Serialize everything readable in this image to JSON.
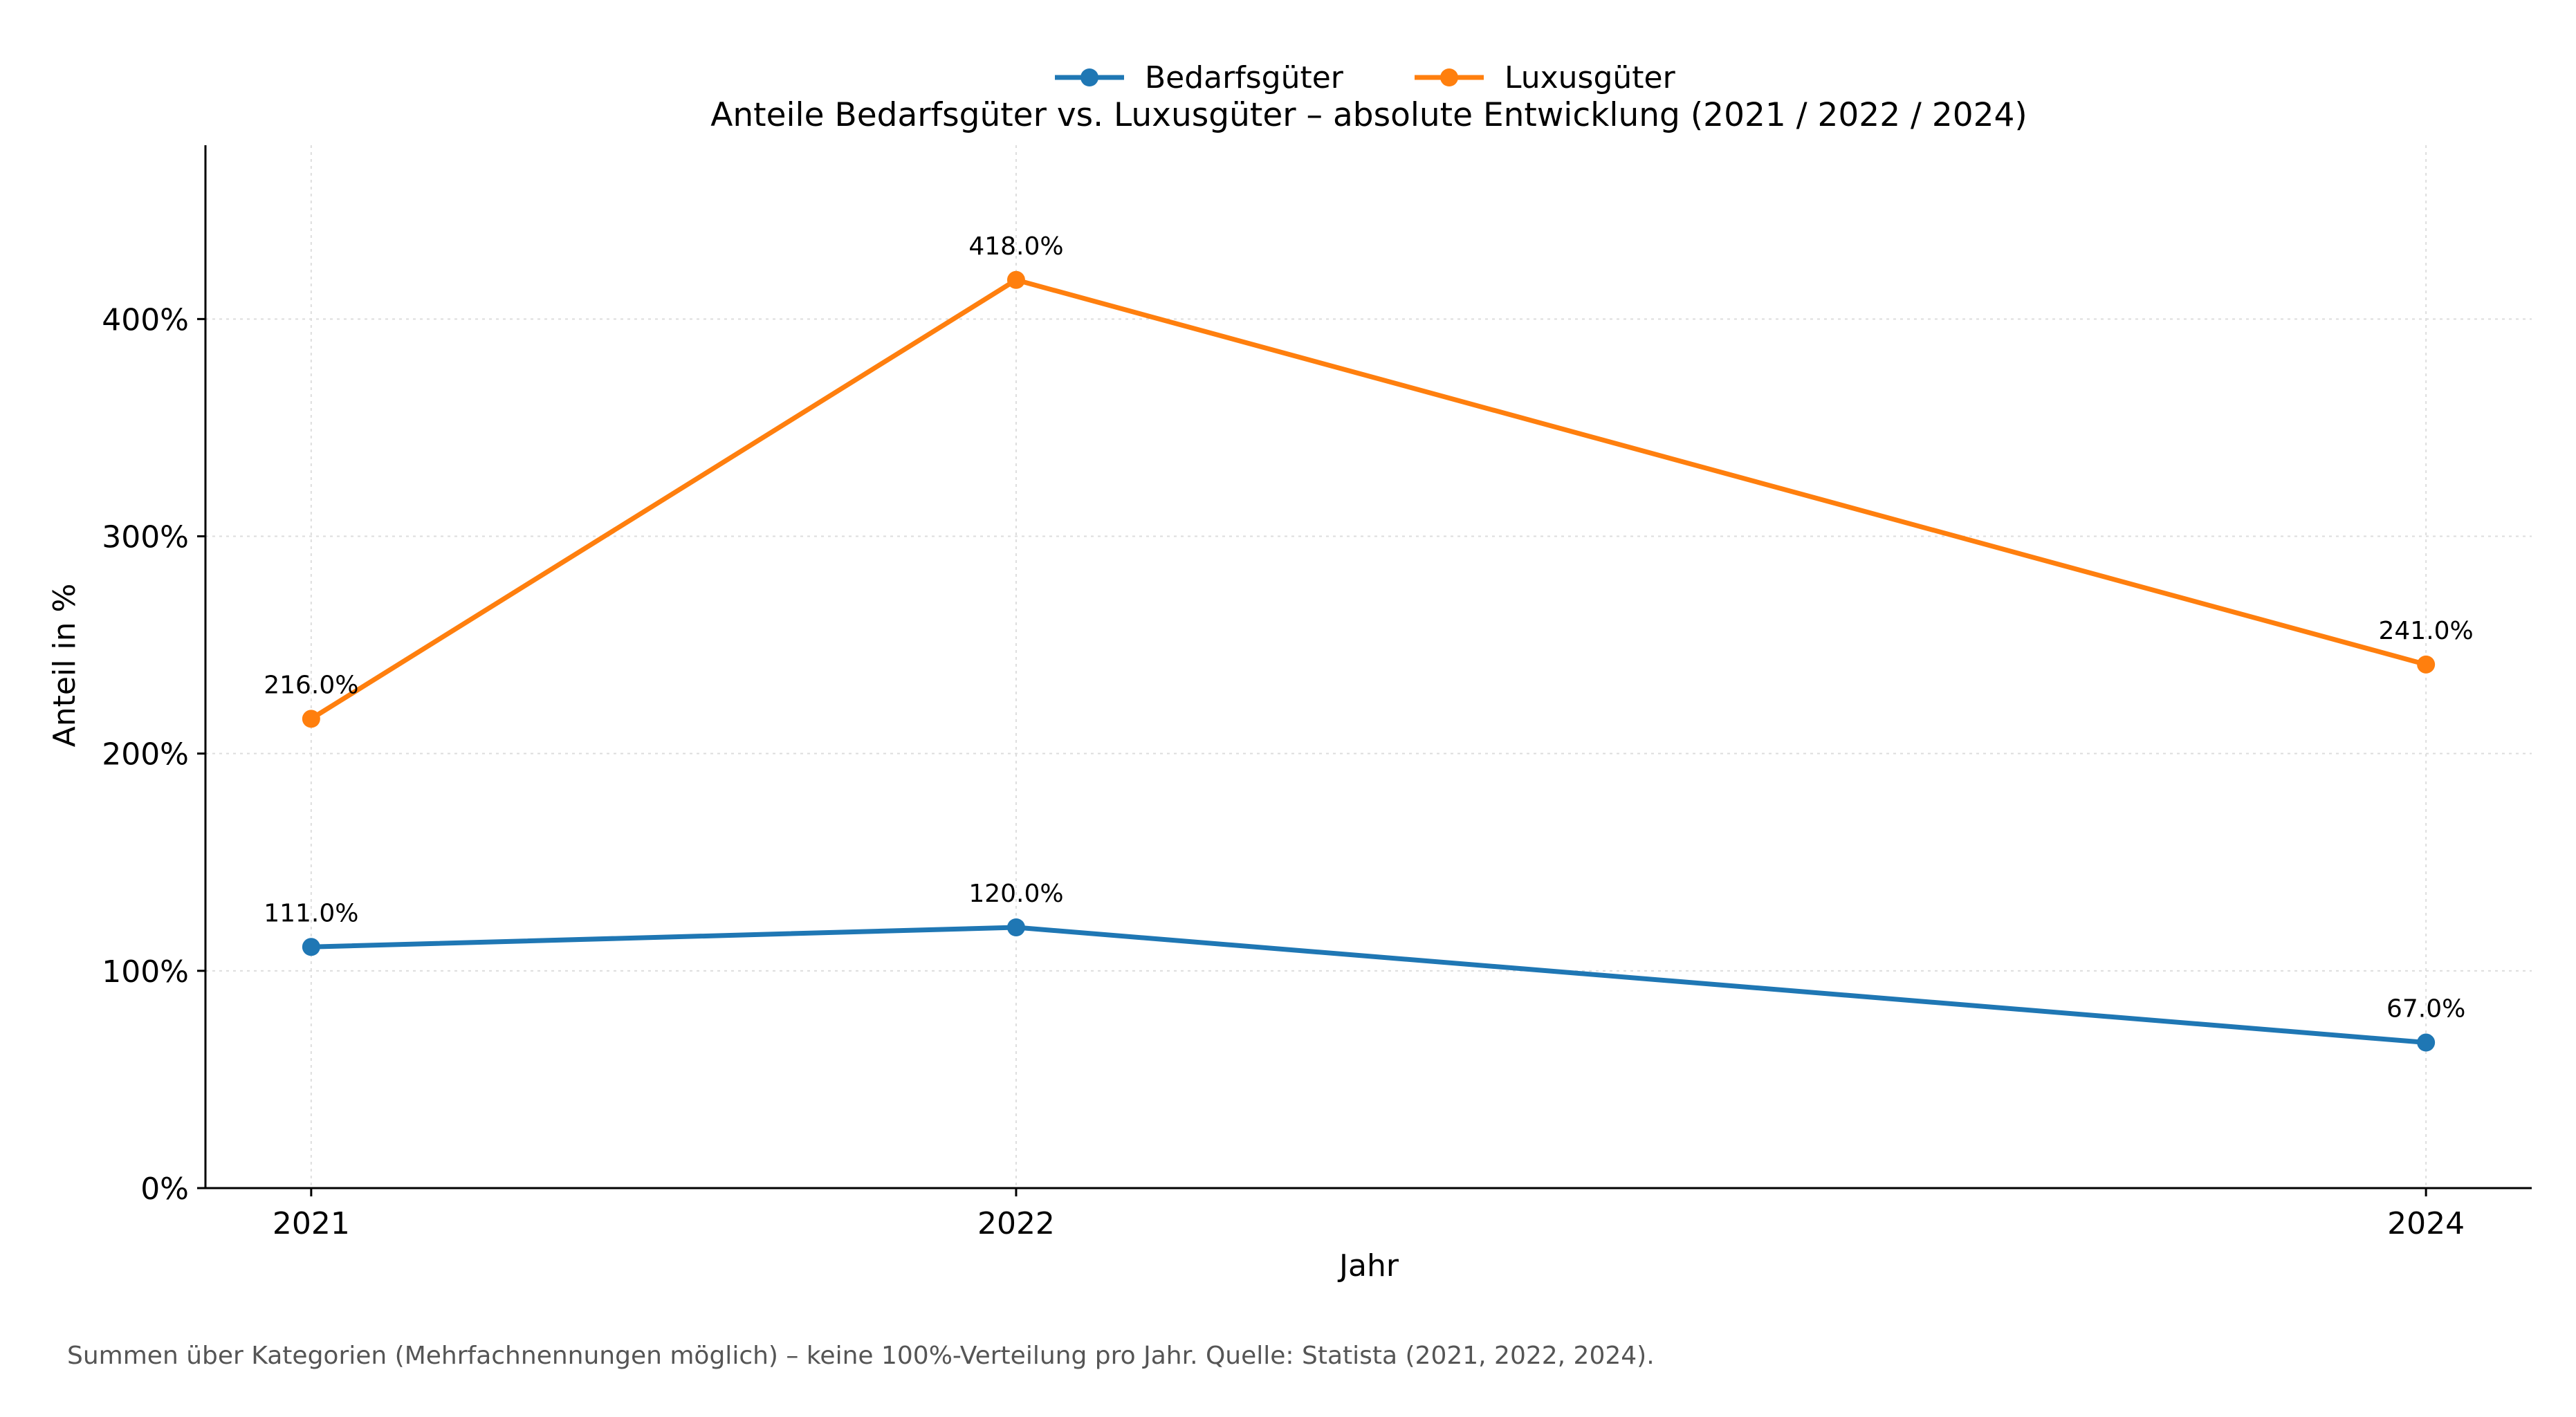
{
  "chart_data": {
    "type": "line",
    "title": "Anteile Bedarfsgüter vs. Luxusgüter – absolute Entwicklung (2021 / 2022 / 2024)",
    "xlabel": "Jahr",
    "ylabel": "Anteil in %",
    "x": [
      2021,
      2022,
      2024
    ],
    "x_tick_labels": [
      "2021",
      "2022",
      "2024"
    ],
    "xlim": [
      2020.85,
      2024.15
    ],
    "ylim": [
      0,
      480
    ],
    "y_ticks": [
      0,
      100,
      200,
      300,
      400
    ],
    "y_tick_labels": [
      "0%",
      "100%",
      "200%",
      "300%",
      "400%"
    ],
    "grid": true,
    "legend_position": "top-center",
    "series": [
      {
        "name": "Bedarfsgüter",
        "color": "#1f77b4",
        "values": [
          111.0,
          120.0,
          67.0
        ],
        "labels": [
          "111.0%",
          "120.0%",
          "67.0%"
        ]
      },
      {
        "name": "Luxusgüter",
        "color": "#ff7f0e",
        "values": [
          216.0,
          418.0,
          241.0
        ],
        "labels": [
          "216.0%",
          "418.0%",
          "241.0%"
        ]
      }
    ],
    "footnote": "Summen über Kategorien (Mehrfachnennungen möglich) – keine 100%-Verteilung pro Jahr. Quelle: Statista (2021, 2022, 2024)."
  }
}
